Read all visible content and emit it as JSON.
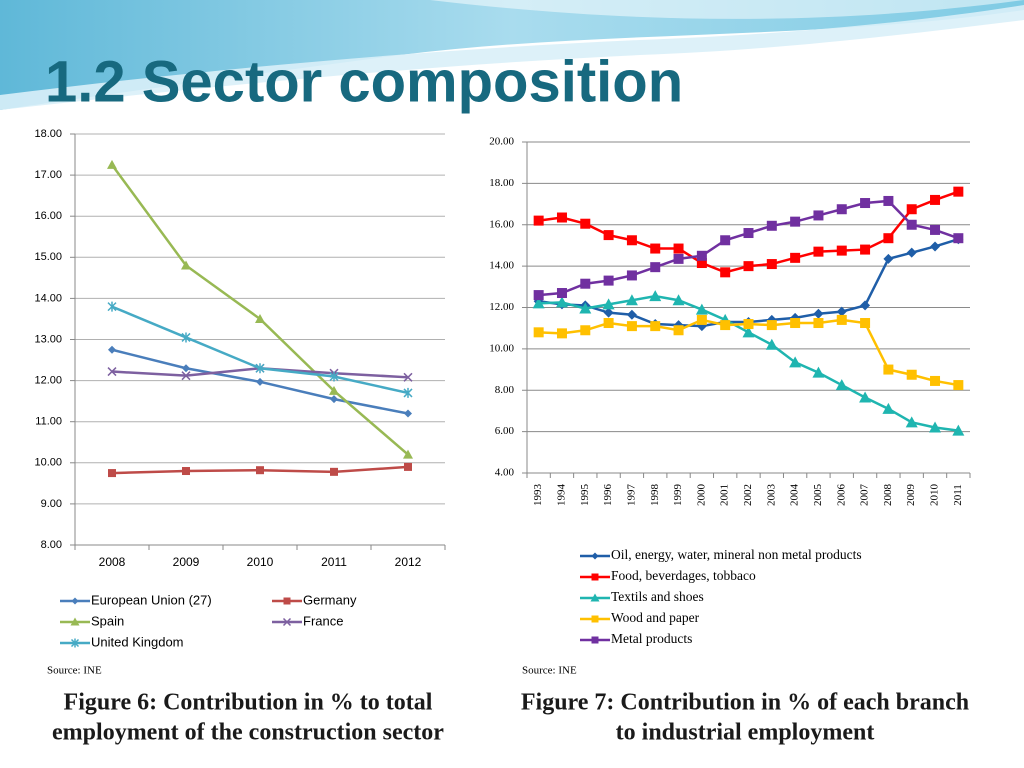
{
  "title": "1.2 Sector composition",
  "chart_data": [
    {
      "type": "line",
      "caption": [
        "Figure 6: Contribution  in % to total",
        "employment of the construction sector"
      ],
      "source": "Source: INE",
      "categories": [
        "2008",
        "2009",
        "2010",
        "2011",
        "2012"
      ],
      "ylim": [
        8,
        18
      ],
      "yticks": [
        {
          "value": 8,
          "label": "8.00"
        },
        {
          "value": 9,
          "label": "9.00"
        },
        {
          "value": 10,
          "label": "10.00"
        },
        {
          "value": 11,
          "label": "11.00"
        },
        {
          "value": 12,
          "label": "12.00"
        },
        {
          "value": 13,
          "label": "13.00"
        },
        {
          "value": 14,
          "label": "14.00"
        },
        {
          "value": 15,
          "label": "15.00"
        },
        {
          "value": 16,
          "label": "16.00"
        },
        {
          "value": 17,
          "label": "17.00"
        },
        {
          "value": 18,
          "label": "18.00"
        }
      ],
      "grid": true,
      "series": [
        {
          "name": "European Union (27)",
          "color": "#4a7ebb",
          "marker": "diamond",
          "values": [
            12.75,
            12.3,
            11.97,
            11.55,
            11.2
          ]
        },
        {
          "name": "Germany",
          "color": "#be4b48",
          "marker": "square",
          "values": [
            9.75,
            9.8,
            9.82,
            9.78,
            9.9
          ]
        },
        {
          "name": "Spain",
          "color": "#98b954",
          "marker": "triangle",
          "values": [
            17.25,
            14.8,
            13.5,
            11.75,
            10.2
          ]
        },
        {
          "name": "France",
          "color": "#7d60a0",
          "marker": "x",
          "values": [
            12.22,
            12.12,
            12.3,
            12.18,
            12.08
          ]
        },
        {
          "name": "United Kingdom",
          "color": "#46aac5",
          "marker": "star",
          "values": [
            13.8,
            13.05,
            12.3,
            12.1,
            11.7
          ]
        }
      ]
    },
    {
      "type": "line",
      "caption": [
        "Figure 7: Contribution in % of each branch",
        "to industrial employment"
      ],
      "source": "Source: INE",
      "categories": [
        "1993",
        "1994",
        "1995",
        "1996",
        "1997",
        "1998",
        "1999",
        "2000",
        "2001",
        "2002",
        "2003",
        "2004",
        "2005",
        "2006",
        "2007",
        "2008",
        "2009",
        "2010",
        "2011"
      ],
      "ylim": [
        4,
        20
      ],
      "yticks": [
        {
          "value": 4,
          "label": "4.00"
        },
        {
          "value": 6,
          "label": "6.00"
        },
        {
          "value": 8,
          "label": "8.00"
        },
        {
          "value": 10,
          "label": "10.00"
        },
        {
          "value": 12,
          "label": "12.00"
        },
        {
          "value": 14,
          "label": "14.00"
        },
        {
          "value": 16,
          "label": "16.00"
        },
        {
          "value": 18,
          "label": "18.00"
        },
        {
          "value": 20,
          "label": "20.00"
        }
      ],
      "grid": true,
      "series": [
        {
          "name": "Oil, energy, water, mineral non metal products",
          "color": "#1f5ea8",
          "marker": "diamond",
          "values": [
            12.3,
            12.15,
            12.1,
            11.75,
            11.65,
            11.2,
            11.15,
            11.1,
            11.3,
            11.3,
            11.4,
            11.5,
            11.7,
            11.8,
            12.1,
            14.35,
            14.65,
            14.95,
            15.3
          ]
        },
        {
          "name": "Food, beverdages, tobbaco",
          "color": "#ff0000",
          "marker": "square",
          "values": [
            16.2,
            16.35,
            16.05,
            15.5,
            15.25,
            14.85,
            14.85,
            14.15,
            13.7,
            14.0,
            14.1,
            14.4,
            14.7,
            14.75,
            14.8,
            15.35,
            16.75,
            17.2,
            17.6
          ]
        },
        {
          "name": "Textils and shoes",
          "color": "#1fb5b0",
          "marker": "triangle",
          "values": [
            12.2,
            12.25,
            11.95,
            12.15,
            12.35,
            12.55,
            12.35,
            11.9,
            11.4,
            10.8,
            10.2,
            9.35,
            8.85,
            8.25,
            7.65,
            7.1,
            6.45,
            6.2,
            6.05
          ]
        },
        {
          "name": "Wood and paper",
          "color": "#ffc000",
          "marker": "square",
          "values": [
            10.8,
            10.75,
            10.9,
            11.25,
            11.1,
            11.1,
            10.9,
            11.4,
            11.15,
            11.2,
            11.15,
            11.25,
            11.25,
            11.4,
            11.25,
            9.0,
            8.75,
            8.45,
            8.25
          ]
        },
        {
          "name": "Metal products",
          "color": "#7030a0",
          "marker": "square",
          "values": [
            12.6,
            12.7,
            13.15,
            13.3,
            13.55,
            13.95,
            14.35,
            14.5,
            15.25,
            15.6,
            15.95,
            16.15,
            16.45,
            16.75,
            17.05,
            17.15,
            16.0,
            15.75,
            15.35
          ]
        }
      ]
    }
  ]
}
